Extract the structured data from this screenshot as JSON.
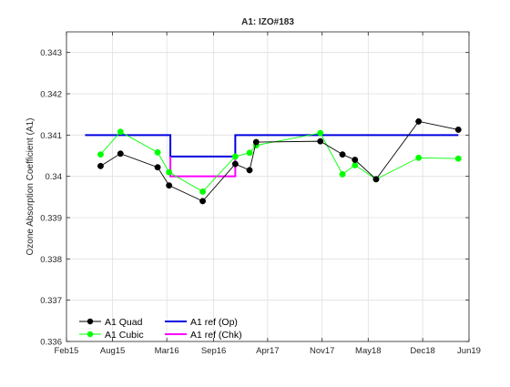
{
  "chart_data": {
    "type": "line",
    "title": "A1: IZO#183",
    "xlabel": "",
    "ylabel": "Ozone Absorption Coefficient (A1)",
    "xlim": [
      "2015-02-01",
      "2019-06-01"
    ],
    "ylim": [
      0.336,
      0.3435
    ],
    "xticks": [
      {
        "date": "2015-02-01",
        "label": "Feb15"
      },
      {
        "date": "2015-08-01",
        "label": "Aug15"
      },
      {
        "date": "2016-03-01",
        "label": "Mar16"
      },
      {
        "date": "2016-09-01",
        "label": "Sep16"
      },
      {
        "date": "2017-04-01",
        "label": "Apr17"
      },
      {
        "date": "2017-11-01",
        "label": "Nov17"
      },
      {
        "date": "2018-05-01",
        "label": "May18"
      },
      {
        "date": "2018-12-01",
        "label": "Dec18"
      },
      {
        "date": "2019-06-01",
        "label": "Jun19"
      }
    ],
    "yticks": [
      {
        "value": 0.336,
        "label": "0.336"
      },
      {
        "value": 0.337,
        "label": "0.337"
      },
      {
        "value": 0.338,
        "label": "0.338"
      },
      {
        "value": 0.339,
        "label": "0.339"
      },
      {
        "value": 0.34,
        "label": "0.34"
      },
      {
        "value": 0.341,
        "label": "0.341"
      },
      {
        "value": 0.342,
        "label": "0.342"
      },
      {
        "value": 0.343,
        "label": "0.343"
      }
    ],
    "grid": true,
    "legend_position": "bottom-left",
    "series": [
      {
        "name": "A1 Quad",
        "color": "#000000",
        "marker": "circle",
        "style": "line-markers",
        "x": [
          "2015-06-15",
          "2015-09-01",
          "2016-01-25",
          "2016-03-10",
          "2016-07-20",
          "2016-11-25",
          "2017-01-20",
          "2017-02-15",
          "2017-10-25",
          "2018-01-20",
          "2018-03-10",
          "2018-06-01",
          "2018-11-15",
          "2019-04-20"
        ],
        "y": [
          0.34025,
          0.34055,
          0.34022,
          0.33978,
          0.3394,
          0.3403,
          0.34015,
          0.34083,
          0.34085,
          0.34053,
          0.3404,
          0.33993,
          0.34133,
          0.34113
        ]
      },
      {
        "name": "A1 Cubic",
        "color": "#00ff00",
        "marker": "circle",
        "style": "line-markers",
        "x": [
          "2015-06-15",
          "2015-09-01",
          "2016-01-25",
          "2016-03-10",
          "2016-07-20",
          "2016-11-25",
          "2017-01-20",
          "2017-02-15",
          "2017-10-25",
          "2018-01-20",
          "2018-03-10",
          "2018-06-01",
          "2018-11-15",
          "2019-04-20"
        ],
        "y": [
          0.34053,
          0.34108,
          0.34058,
          0.3401,
          0.33963,
          0.34048,
          0.34057,
          0.34075,
          0.34105,
          0.34005,
          0.34027,
          0.33993,
          0.34045,
          0.34043
        ]
      },
      {
        "name": "A1 ref (Op)",
        "color": "#0000e0",
        "style": "step",
        "x": [
          "2015-04-15",
          "2016-03-15",
          "2016-03-15",
          "2016-11-25",
          "2016-11-25",
          "2019-04-20"
        ],
        "y": [
          0.341,
          0.341,
          0.34048,
          0.34048,
          0.341,
          0.341
        ]
      },
      {
        "name": "A1 ref (Chk)",
        "color": "#ff00ff",
        "style": "step",
        "x": [
          "2016-03-15",
          "2016-03-15",
          "2016-11-25",
          "2016-11-25"
        ],
        "y": [
          0.34048,
          0.34,
          0.34,
          0.34048
        ]
      }
    ]
  }
}
